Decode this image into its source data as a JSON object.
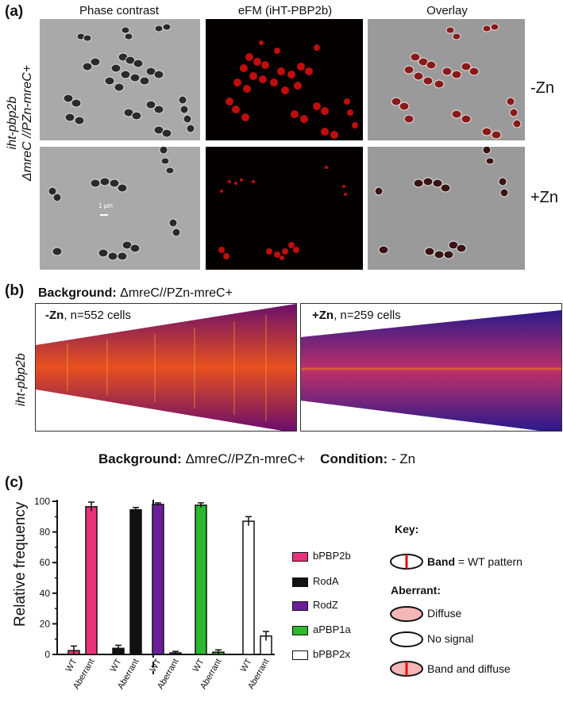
{
  "panel_a": {
    "label": "(a)",
    "columns": [
      "Phase contrast",
      "eFM (iHT-PBP2b)",
      "Overlay"
    ],
    "row_labels": [
      "-Zn",
      "+Zn"
    ],
    "side_label_line1": "iht-pbp2b",
    "side_label_line2": "ΔmreC //PZn-mreC+",
    "scale_bar": "1 µm"
  },
  "panel_b": {
    "label": "(b)",
    "background_prefix": "Background:",
    "background_value": "ΔmreC//PZn-mreC+",
    "side_label": "iht-pbp2b",
    "left": {
      "cond": "-Zn",
      "count": ", n=552 cells"
    },
    "right": {
      "cond": "+Zn",
      "count": ", n=259 cells"
    }
  },
  "panel_c": {
    "label": "(c)",
    "header_background_prefix": "Background:",
    "header_background_value": "ΔmreC//PZn-mreC+",
    "header_condition_prefix": "Condition:",
    "header_condition_value": "- Zn",
    "key_title": "Key:",
    "key_band_bold": "Band",
    "key_band_rest": " = WT pattern",
    "aberrant_title": "Aberrant:",
    "key_diffuse": "Diffuse",
    "key_nosignal": "No signal",
    "key_banddiffuse": "Band and diffuse"
  },
  "chart_data": {
    "type": "bar",
    "ylabel": "Relative frequency",
    "ylim": [
      0,
      100
    ],
    "yticks": [
      "0",
      "20",
      "40",
      "60",
      "80",
      "100"
    ],
    "categories": [
      "WT",
      "Aberrant"
    ],
    "series": [
      {
        "name": "bPBP2b",
        "color": "#e8337a",
        "values": [
          2.5,
          96.5
        ],
        "errors": [
          3,
          3
        ]
      },
      {
        "name": "RodA",
        "color": "#111111",
        "values": [
          4,
          94.5
        ],
        "errors": [
          2,
          1.5
        ]
      },
      {
        "name": "RodZ",
        "color": "#6a1f9a",
        "values": [
          98,
          1
        ],
        "errors": [
          1,
          1
        ]
      },
      {
        "name": "aPBP1a",
        "color": "#2db82d",
        "values": [
          97.5,
          1.5
        ],
        "errors": [
          1.5,
          1.5
        ]
      },
      {
        "name": "bPBP2x",
        "color": "#ffffff",
        "values": [
          87,
          12
        ],
        "errors": [
          3,
          3
        ]
      }
    ],
    "legend_position": "right"
  }
}
